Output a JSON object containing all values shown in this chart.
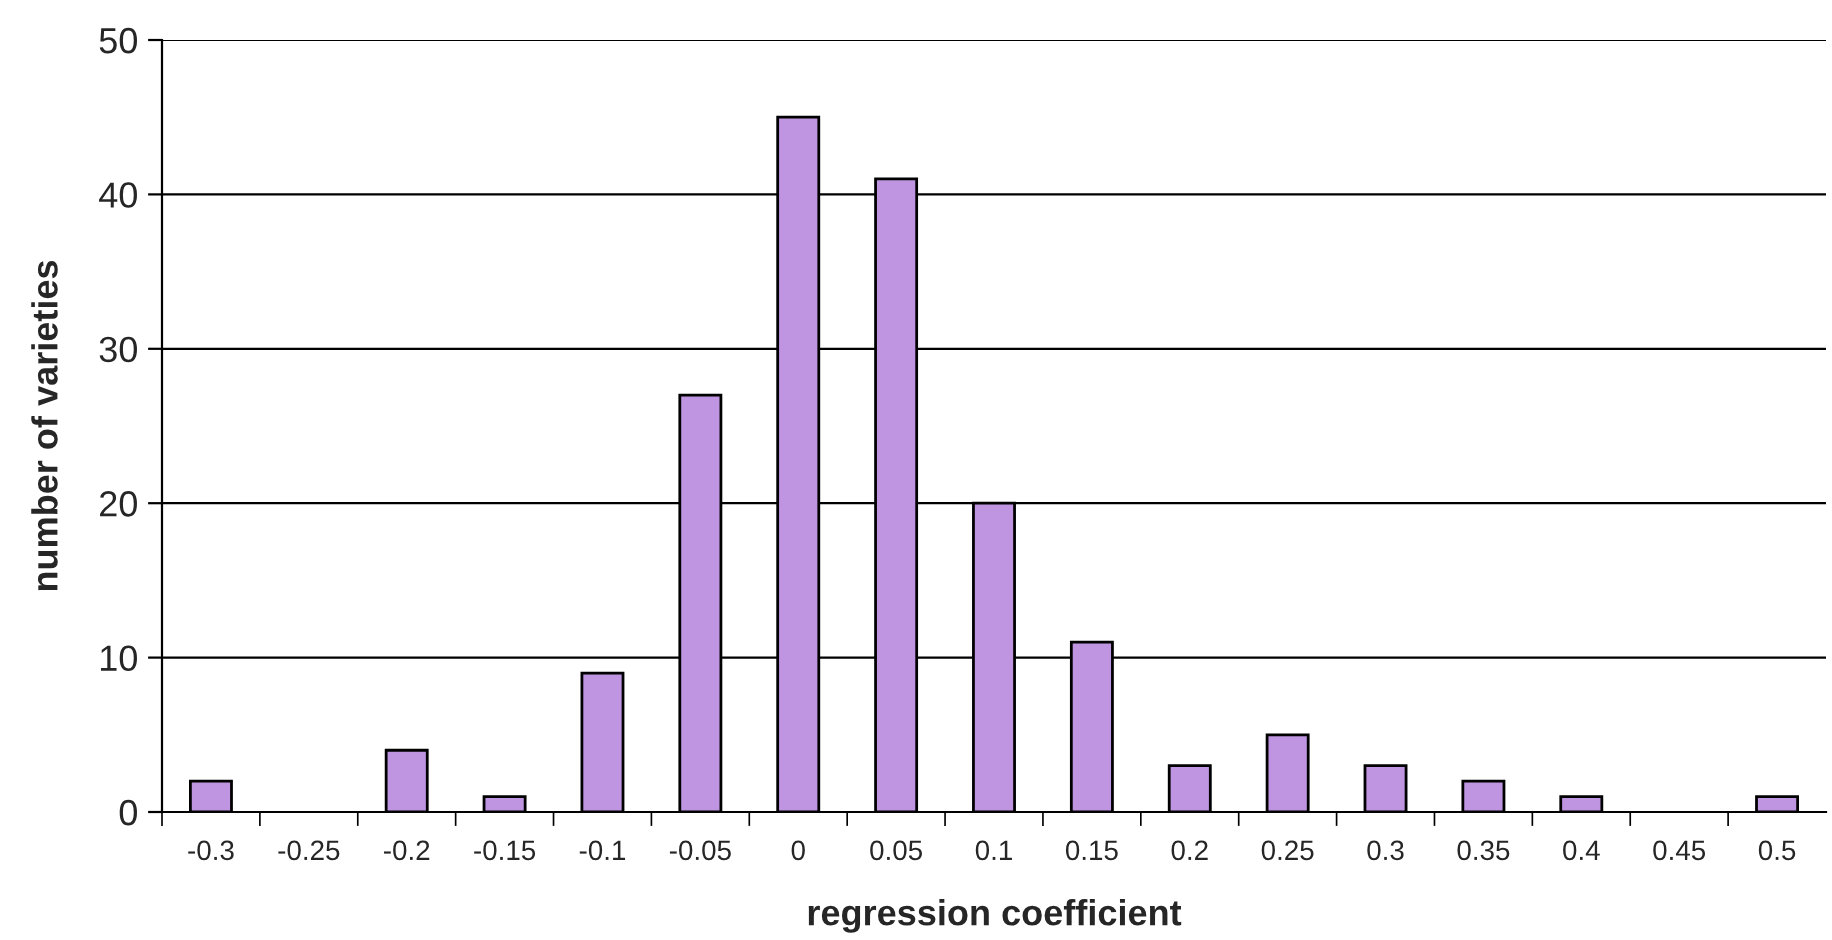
{
  "chart_data": {
    "type": "bar",
    "xlabel": "regression coefficient",
    "ylabel": "number of varieties",
    "categories": [
      "-0.3",
      "-0.25",
      "-0.2",
      "-0.15",
      "-0.1",
      "-0.05",
      "0",
      "0.05",
      "0.1",
      "0.15",
      "0.2",
      "0.25",
      "0.3",
      "0.35",
      "0.4",
      "0.45",
      "0.5"
    ],
    "values": [
      2,
      0,
      4,
      1,
      9,
      27,
      45,
      41,
      20,
      11,
      3,
      5,
      3,
      2,
      1,
      0,
      1
    ],
    "color": "#bf94e0",
    "ylim": [
      0,
      50
    ],
    "yticks": [
      0,
      10,
      20,
      30,
      40,
      50
    ],
    "grid": "y",
    "legend": false
  }
}
